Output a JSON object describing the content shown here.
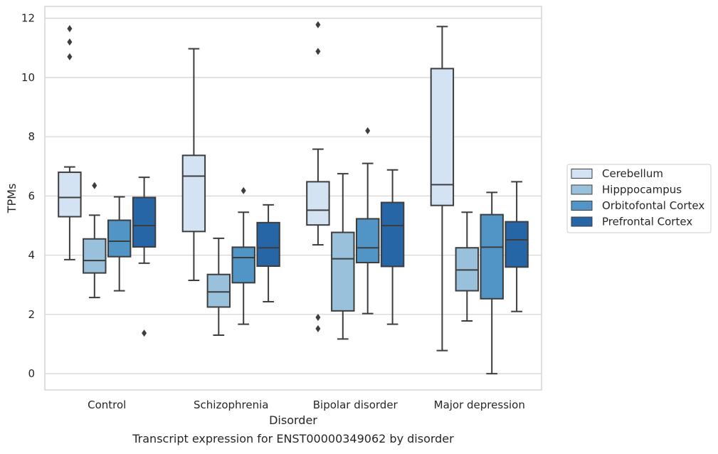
{
  "chart_data": {
    "type": "box",
    "xlabel": "Disorder",
    "ylabel": "TPMs",
    "caption": "Transcript expression for ENST00000349062 by disorder",
    "ylim": [
      -0.55,
      12.4
    ],
    "yticks": [
      0,
      2,
      4,
      6,
      8,
      10,
      12
    ],
    "grid": true,
    "legend_position": "right",
    "categories": [
      "Control",
      "Schizophrenia",
      "Bipolar disorder",
      "Major depression"
    ],
    "series": [
      {
        "name": "Cerebellum",
        "color": "#d4e3f3",
        "boxes": [
          {
            "whisker_low": 3.85,
            "q1": 5.3,
            "median": 5.95,
            "q3": 6.8,
            "whisker_high": 6.98,
            "outliers": [
              10.7,
              11.2,
              11.65
            ]
          },
          {
            "whisker_low": 3.15,
            "q1": 4.8,
            "median": 6.67,
            "q3": 7.37,
            "whisker_high": 10.97,
            "outliers": []
          },
          {
            "whisker_low": 4.35,
            "q1": 5.02,
            "median": 5.52,
            "q3": 6.48,
            "whisker_high": 7.58,
            "outliers": [
              1.52,
              1.9,
              10.88,
              11.78
            ]
          },
          {
            "whisker_low": 0.78,
            "q1": 5.68,
            "median": 6.38,
            "q3": 10.3,
            "whisker_high": 11.72,
            "outliers": []
          }
        ]
      },
      {
        "name": "Hipppocampus",
        "color": "#9ac1db",
        "boxes": [
          {
            "whisker_low": 2.57,
            "q1": 3.4,
            "median": 3.82,
            "q3": 4.55,
            "whisker_high": 5.35,
            "outliers": [
              6.35
            ]
          },
          {
            "whisker_low": 1.3,
            "q1": 2.25,
            "median": 2.76,
            "q3": 3.35,
            "whisker_high": 4.57,
            "outliers": []
          },
          {
            "whisker_low": 1.17,
            "q1": 2.12,
            "median": 3.88,
            "q3": 4.77,
            "whisker_high": 6.75,
            "outliers": []
          },
          {
            "whisker_low": 1.78,
            "q1": 2.8,
            "median": 3.5,
            "q3": 4.25,
            "whisker_high": 5.45,
            "outliers": []
          }
        ]
      },
      {
        "name": "Orbitofontal Cortex",
        "color": "#5195c7",
        "boxes": [
          {
            "whisker_low": 2.8,
            "q1": 3.95,
            "median": 4.47,
            "q3": 5.18,
            "whisker_high": 5.97,
            "outliers": []
          },
          {
            "whisker_low": 1.67,
            "q1": 3.07,
            "median": 3.92,
            "q3": 4.27,
            "whisker_high": 5.45,
            "outliers": [
              6.18
            ]
          },
          {
            "whisker_low": 2.03,
            "q1": 3.75,
            "median": 4.25,
            "q3": 5.23,
            "whisker_high": 7.1,
            "outliers": [
              8.2
            ]
          },
          {
            "whisker_low": 0.0,
            "q1": 2.53,
            "median": 4.27,
            "q3": 5.37,
            "whisker_high": 6.12,
            "outliers": []
          }
        ]
      },
      {
        "name": "Prefrontal Cortex",
        "color": "#2665a6",
        "boxes": [
          {
            "whisker_low": 3.73,
            "q1": 4.28,
            "median": 5.0,
            "q3": 5.95,
            "whisker_high": 6.63,
            "outliers": [
              1.37
            ]
          },
          {
            "whisker_low": 2.43,
            "q1": 3.63,
            "median": 4.25,
            "q3": 5.1,
            "whisker_high": 5.7,
            "outliers": []
          },
          {
            "whisker_low": 1.67,
            "q1": 3.62,
            "median": 5.0,
            "q3": 5.78,
            "whisker_high": 6.88,
            "outliers": []
          },
          {
            "whisker_low": 2.1,
            "q1": 3.6,
            "median": 4.52,
            "q3": 5.13,
            "whisker_high": 6.48,
            "outliers": []
          }
        ]
      }
    ]
  }
}
